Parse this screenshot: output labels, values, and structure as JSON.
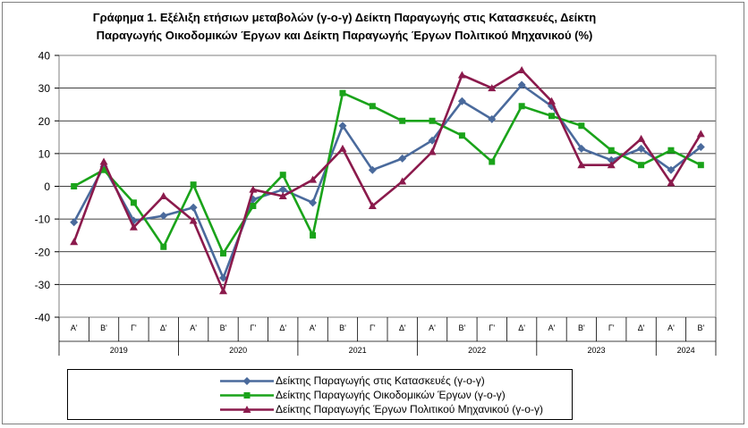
{
  "chart_data": {
    "type": "line",
    "title": [
      "Γράφημα 1. Εξέλιξη ετήσιων μεταβολών (γ-ο-γ) Δείκτη Παραγωγής στις Κατασκευές, Δείκτη",
      "Παραγωγής Οικοδομικών Έργων και  Δείκτη Παραγωγής  Έργων Πολιτικού Μηχανικού (%)"
    ],
    "quarters": [
      "Α'",
      "Β'",
      "Γ'",
      "Δ'",
      "Α'",
      "Β'",
      "Γ'",
      "Δ'",
      "Α'",
      "Β'",
      "Γ'",
      "Δ'",
      "Α'",
      "Β'",
      "Γ'",
      "Δ'",
      "Α'",
      "Β'",
      "Γ'",
      "Δ'",
      "Α'",
      "Β'"
    ],
    "years": [
      {
        "label": "2019",
        "quarters": 4
      },
      {
        "label": "2020",
        "quarters": 4
      },
      {
        "label": "2021",
        "quarters": 4
      },
      {
        "label": "2022",
        "quarters": 4
      },
      {
        "label": "2023",
        "quarters": 4
      },
      {
        "label": "2024",
        "quarters": 2
      }
    ],
    "ylim": [
      -40,
      40
    ],
    "yticks": [
      -40,
      -30,
      -20,
      -10,
      0,
      10,
      20,
      30,
      40
    ],
    "grid": true,
    "legend_position": "bottom",
    "series": [
      {
        "name": "Δείκτης Παραγωγής στις Κατασκευές (γ-ο-γ)",
        "color": "#4A6A9C",
        "marker": "diamond",
        "values": [
          -11,
          6,
          -10.5,
          -9,
          -6.5,
          -28,
          -4,
          -1,
          -5,
          18.5,
          5,
          8.5,
          14,
          26,
          20.5,
          31,
          24.5,
          11.5,
          8,
          11.5,
          5,
          12
        ]
      },
      {
        "name": "Δείκτης Παραγωγής Οικοδομικών Έργων (γ-ο-γ)",
        "color": "#1AA31A",
        "marker": "square",
        "values": [
          0,
          5,
          -5,
          -18.5,
          0.5,
          -20.5,
          -6,
          3.5,
          -15,
          28.5,
          24.5,
          20,
          20,
          15.5,
          7.5,
          24.5,
          21.5,
          18.5,
          11,
          6.5,
          11,
          6.5
        ]
      },
      {
        "name": "Δείκτης Παραγωγής Έργων Πολιτικού Μηχανικού (γ-ο-γ)",
        "color": "#8B1A4C",
        "marker": "triangle",
        "values": [
          -17,
          7.5,
          -12.5,
          -3,
          -10.5,
          -32,
          -1,
          -3,
          2,
          11.5,
          -6,
          1.5,
          10.5,
          34,
          30,
          35.5,
          26,
          6.5,
          6.5,
          14.5,
          1,
          16
        ]
      }
    ]
  },
  "legend": {
    "labels": [
      "Δείκτης Παραγωγής στις Κατασκευές (γ-ο-γ)",
      "Δείκτης Παραγωγής Οικοδομικών Έργων (γ-ο-γ)",
      "Δείκτης Παραγωγής Έργων Πολιτικού Μηχανικού (γ-ο-γ)"
    ]
  }
}
